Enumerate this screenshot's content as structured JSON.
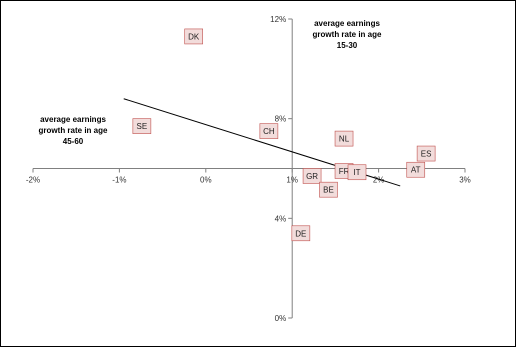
{
  "chart_data": {
    "type": "scatter",
    "x_axis": {
      "min": -2,
      "max": 3,
      "step": 1,
      "tick_labels": [
        "-2%",
        "-1%",
        "0%",
        "1%",
        "2%",
        "3%"
      ],
      "label_lines": [
        "average earnings",
        "growth rate in age",
        "45-60"
      ]
    },
    "y_axis": {
      "min": 0,
      "max": 12,
      "step": 4,
      "tick_labels": [
        "0%",
        "4%",
        "8%",
        "12%"
      ],
      "label_lines": [
        "average earnings",
        "growth rate in age",
        "15-30"
      ]
    },
    "points": [
      {
        "label": "DK",
        "x": -0.14,
        "y": 11.3
      },
      {
        "label": "SE",
        "x": -0.74,
        "y": 7.7
      },
      {
        "label": "CH",
        "x": 0.73,
        "y": 7.5
      },
      {
        "label": "NL",
        "x": 1.6,
        "y": 7.2
      },
      {
        "label": "ES",
        "x": 2.55,
        "y": 6.6
      },
      {
        "label": "FR",
        "x": 1.6,
        "y": 5.9
      },
      {
        "label": "IT",
        "x": 1.75,
        "y": 5.85
      },
      {
        "label": "AT",
        "x": 2.43,
        "y": 5.95
      },
      {
        "label": "GR",
        "x": 1.23,
        "y": 5.7
      },
      {
        "label": "BE",
        "x": 1.42,
        "y": 5.15
      },
      {
        "label": "DE",
        "x": 1.1,
        "y": 3.4
      }
    ],
    "trendline": {
      "x": [
        -0.95,
        2.25
      ],
      "y": [
        8.8,
        5.3
      ]
    },
    "grid": false,
    "colors": {
      "point_fill": "#f2dcdb",
      "point_border": "#c0504d",
      "axis": "#808080",
      "trend": "#000000"
    }
  }
}
